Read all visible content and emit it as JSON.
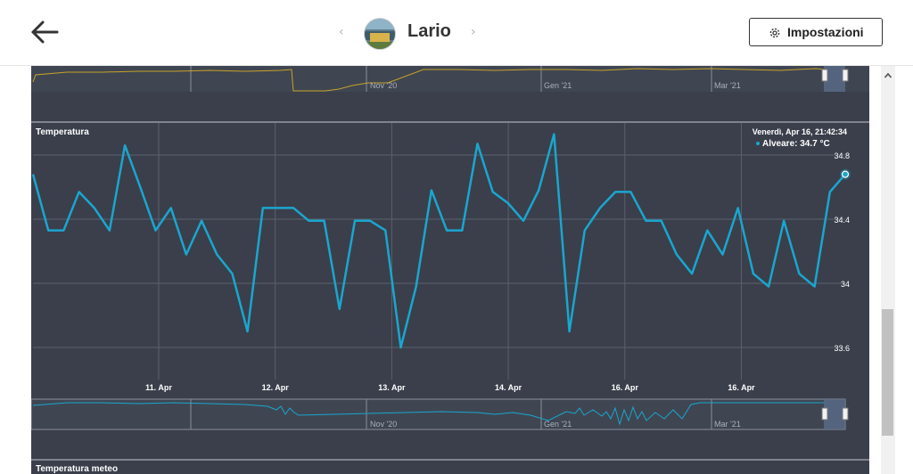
{
  "header": {
    "title": "Lario",
    "settings_label": "Impostazioni"
  },
  "top_navigator": {
    "labels": [
      "Nov '20",
      "Gen '21",
      "Mar '21"
    ],
    "color": "#c9a227"
  },
  "chart_data": [
    {
      "type": "line",
      "title": "Temperatura",
      "series": [
        {
          "name": "Alveare",
          "color": "#1aa6cf",
          "values": [
            34.68,
            34.33,
            34.33,
            34.57,
            34.47,
            34.33,
            34.86,
            34.6,
            34.33,
            34.47,
            34.18,
            34.39,
            34.18,
            34.06,
            33.7,
            34.47,
            34.47,
            34.47,
            34.39,
            34.39,
            33.84,
            34.39,
            34.39,
            34.33,
            33.6,
            33.98,
            34.58,
            34.33,
            34.33,
            34.87,
            34.57,
            34.5,
            34.39,
            34.58,
            34.93,
            33.7,
            34.33,
            34.47,
            34.57,
            34.57,
            34.39,
            34.39,
            34.18,
            34.06,
            34.33,
            34.18,
            34.47,
            34.06,
            33.98,
            34.39,
            34.06,
            33.98,
            34.57,
            34.68
          ]
        }
      ],
      "x_tick_labels": [
        "11. Apr",
        "12. Apr",
        "13. Apr",
        "14. Apr",
        "16. Apr",
        "16. Apr"
      ],
      "y_tick_labels": [
        "34.8",
        "34.4",
        "34",
        "33.6"
      ],
      "ylim": [
        33.4,
        35.0
      ],
      "grid": true,
      "tooltip": {
        "date": "Venerdì, Apr 16, 21:42:34",
        "text": "Alveare: 34.7 °C"
      }
    }
  ],
  "bottom_navigator": {
    "labels": [
      "Nov '20",
      "Gen '21",
      "Mar '21"
    ],
    "color": "#1aa6cf"
  },
  "next_section": {
    "title": "Temperatura meteo"
  }
}
